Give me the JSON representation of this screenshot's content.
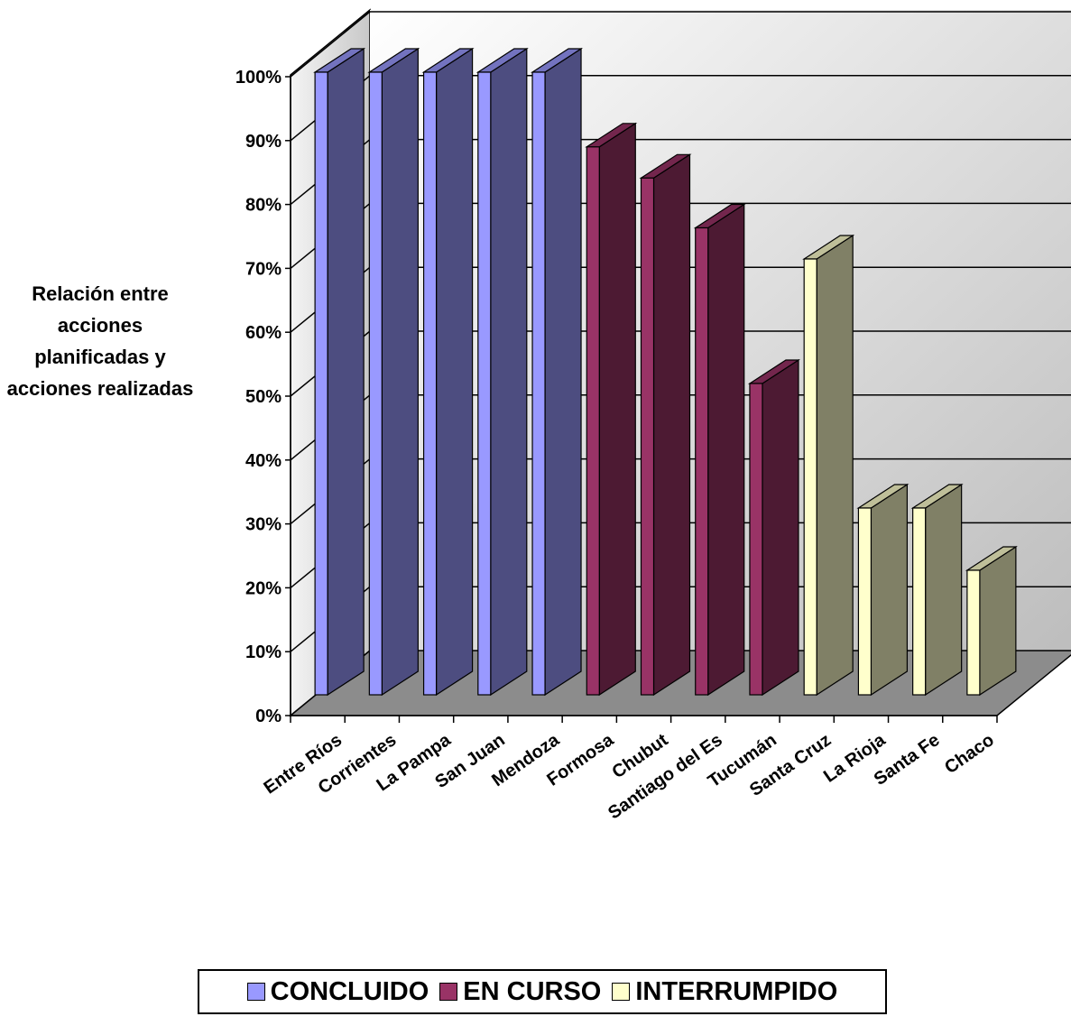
{
  "chart_data": {
    "type": "bar",
    "ylabel": "Relación entre acciones planificadas y acciones realizadas",
    "ylim": [
      0,
      100
    ],
    "y_ticks": [
      "0%",
      "10%",
      "20%",
      "30%",
      "40%",
      "50%",
      "60%",
      "70%",
      "80%",
      "90%",
      "100%"
    ],
    "categories": [
      "Entre Ríos",
      "Corrientes",
      "La Pampa",
      "San Juan",
      "Mendoza",
      "Formosa",
      "Chubut",
      "Santiago del Es",
      "Tucumán",
      "Santa Cruz",
      "La Rioja",
      "Santa Fe",
      "Chaco"
    ],
    "values": [
      100,
      100,
      100,
      100,
      100,
      88,
      83,
      75,
      50,
      70,
      30,
      30,
      20
    ],
    "status": [
      "CONCLUIDO",
      "CONCLUIDO",
      "CONCLUIDO",
      "CONCLUIDO",
      "CONCLUIDO",
      "EN CURSO",
      "EN CURSO",
      "EN CURSO",
      "EN CURSO",
      "INTERRUMPIDO",
      "INTERRUMPIDO",
      "INTERRUMPIDO",
      "INTERRUMPIDO"
    ],
    "legend": [
      {
        "name": "CONCLUIDO",
        "color": "#9999ff"
      },
      {
        "name": "EN CURSO",
        "color": "#993366"
      },
      {
        "name": "INTERRUMPIDO",
        "color": "#ffffcc"
      }
    ],
    "legend_position": "bottom",
    "grid": true,
    "style": "3d-columns"
  }
}
